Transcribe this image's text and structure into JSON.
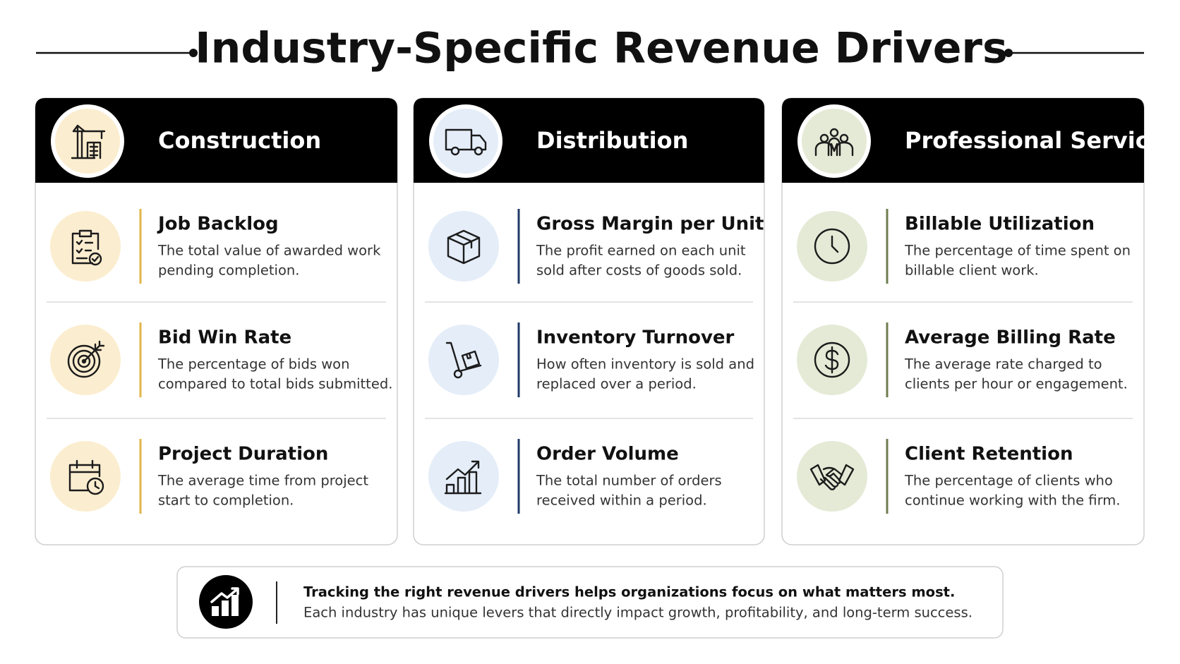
{
  "title": "Industry-Specific Revenue Drivers",
  "columns": [
    {
      "name": "Construction",
      "rows": [
        {
          "title": "Job Backlog",
          "lines": [
            "The total value of awarded work",
            "pending completion."
          ]
        },
        {
          "title": "Bid Win Rate",
          "lines": [
            "The percentage of bids won",
            "compared to total bids submitted."
          ]
        },
        {
          "title": "Project Duration",
          "lines": [
            "The average time from project",
            "start to completion."
          ]
        }
      ]
    },
    {
      "name": "Distribution",
      "rows": [
        {
          "title": "Gross Margin per Unit",
          "lines": [
            "The profit earned on each unit",
            "sold after costs of goods sold."
          ]
        },
        {
          "title": "Inventory Turnover",
          "lines": [
            "How often inventory is sold and",
            "replaced over a period."
          ]
        },
        {
          "title": "Order Volume",
          "lines": [
            "The total number of orders",
            "received within a period."
          ]
        }
      ]
    },
    {
      "name": "Professional Services",
      "rows": [
        {
          "title": "Billable Utilization",
          "lines": [
            "The percentage of time spent on",
            "billable client work."
          ]
        },
        {
          "title": "Average Billing Rate",
          "lines": [
            "The average rate charged to",
            "clients per hour or engagement."
          ]
        },
        {
          "title": "Client Retention",
          "lines": [
            "The percentage of clients who",
            "continue working with the firm."
          ]
        }
      ]
    }
  ],
  "footer": {
    "headline": "Tracking the right revenue drivers helps organizations focus on what matters most.",
    "text": "Each industry has unique levers that directly impact growth, profitability, and long-term success."
  }
}
